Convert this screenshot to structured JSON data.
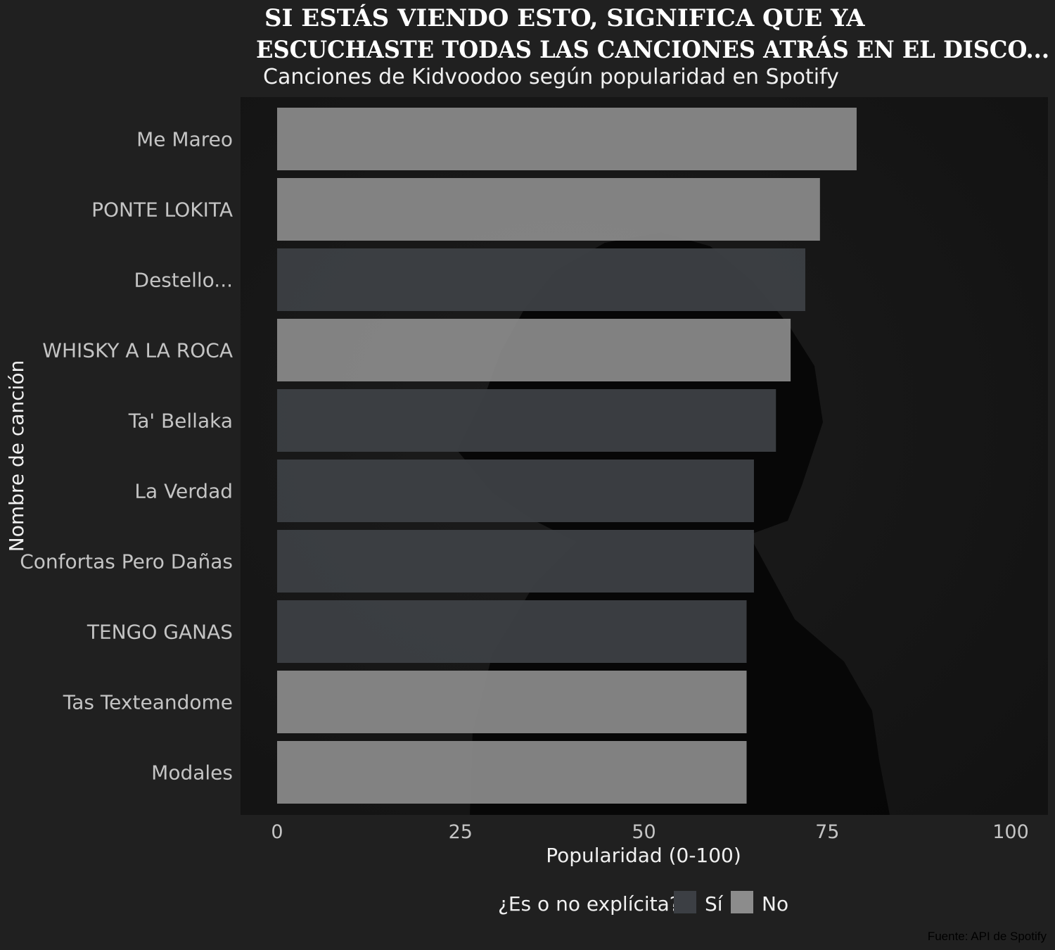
{
  "chart_data": {
    "type": "bar",
    "orientation": "horizontal",
    "title_line1": "SI ESTÁS VIENDO ESTO, SIGNIFICA QUE YA",
    "title_line2": "ESCUCHASTE TODAS LAS CANCIONES ATRÁS EN EL DISCO...",
    "subtitle": "Canciones de Kidvoodoo según popularidad en Spotify",
    "xlabel": "Popularidad (0-100)",
    "ylabel": "Nombre de canción",
    "xlim": [
      0,
      100
    ],
    "xticks": [
      0,
      25,
      50,
      75,
      100
    ],
    "categories": [
      "Me Mareo",
      "PONTE LOKITA",
      "Destello...",
      "WHISKY A LA ROCA",
      "Ta' Bellaka",
      "La Verdad",
      "Confortas Pero Dañas",
      "TENGO GANAS",
      "Tas Texteandome",
      "Modales"
    ],
    "values": [
      79,
      74,
      72,
      70,
      68,
      65,
      65,
      64,
      64,
      64
    ],
    "explicit": [
      "No",
      "No",
      "Sí",
      "No",
      "Sí",
      "Sí",
      "Sí",
      "Sí",
      "No",
      "No"
    ],
    "legend": {
      "title": "¿Es o no explícita?",
      "placement": "bottom",
      "entries": [
        {
          "label": "Sí",
          "color": "#3c3f44"
        },
        {
          "label": "No",
          "color": "#8c8c8c"
        }
      ]
    },
    "caption": "Fuente: API de Spotify",
    "grid": false
  },
  "colors": {
    "background": "#202020",
    "panel": "#141414",
    "explicit_yes": "#3c3f44",
    "explicit_no": "#8c8c8c"
  }
}
